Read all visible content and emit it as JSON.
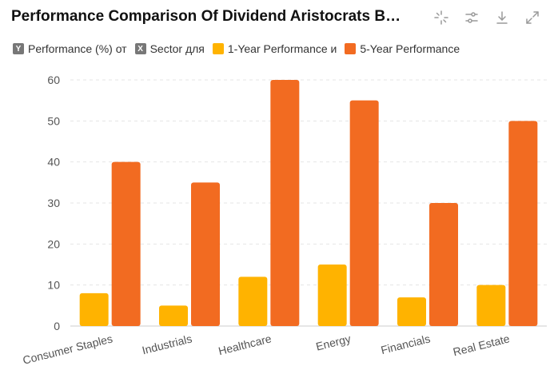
{
  "header": {
    "title": "Performance Comparison Of Dividend Aristocrats B…"
  },
  "toolbar": {
    "icons": [
      "select-icon",
      "filter-settings-icon",
      "download-icon",
      "expand-icon"
    ]
  },
  "legend": {
    "y_axis_label": "Performance (%) от",
    "x_axis_label": "Sector для",
    "series1_label": "1-Year Performance и",
    "series2_label": "5-Year Performance",
    "y_badge": "Y",
    "x_badge": "X"
  },
  "colors": {
    "series1": "#FFB300",
    "series2": "#F26B21",
    "badge": "#777777",
    "grid": "#e5e5e5",
    "axis_text": "#555555"
  },
  "chart_data": {
    "type": "bar",
    "title": "Performance Comparison Of Dividend Aristocrats B…",
    "xlabel": "Sector",
    "ylabel": "Performance (%)",
    "categories": [
      "Consumer Staples",
      "Industrials",
      "Healthcare",
      "Energy",
      "Financials",
      "Real Estate"
    ],
    "series": [
      {
        "name": "1-Year Performance",
        "values": [
          8,
          5,
          12,
          15,
          7,
          10
        ]
      },
      {
        "name": "5-Year Performance",
        "values": [
          40,
          35,
          60,
          55,
          30,
          50
        ]
      }
    ],
    "yticks": [
      0,
      10,
      20,
      30,
      40,
      50,
      60
    ],
    "ylim": [
      0,
      60
    ],
    "grid": true,
    "legend_position": "top-left"
  }
}
